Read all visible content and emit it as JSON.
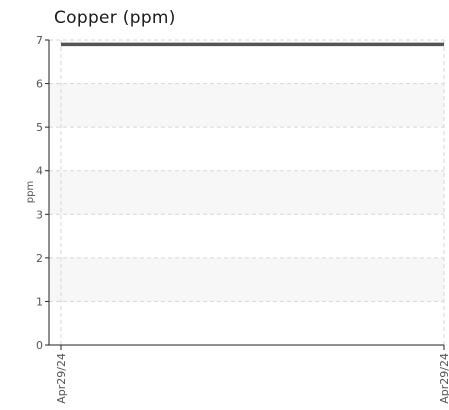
{
  "chart_data": {
    "type": "line",
    "title": "Copper (ppm)",
    "ylabel": "ppm",
    "xlabel": "",
    "ylim": [
      0,
      7
    ],
    "yticks": [
      0,
      1,
      2,
      3,
      4,
      5,
      6,
      7
    ],
    "x_tick_labels": [
      "Apr29/24",
      "Apr29/24"
    ],
    "series": [
      {
        "values": [
          6.9,
          6.9
        ],
        "color": "#555555"
      }
    ],
    "grid": true,
    "band_color": "#f7f7f7"
  }
}
